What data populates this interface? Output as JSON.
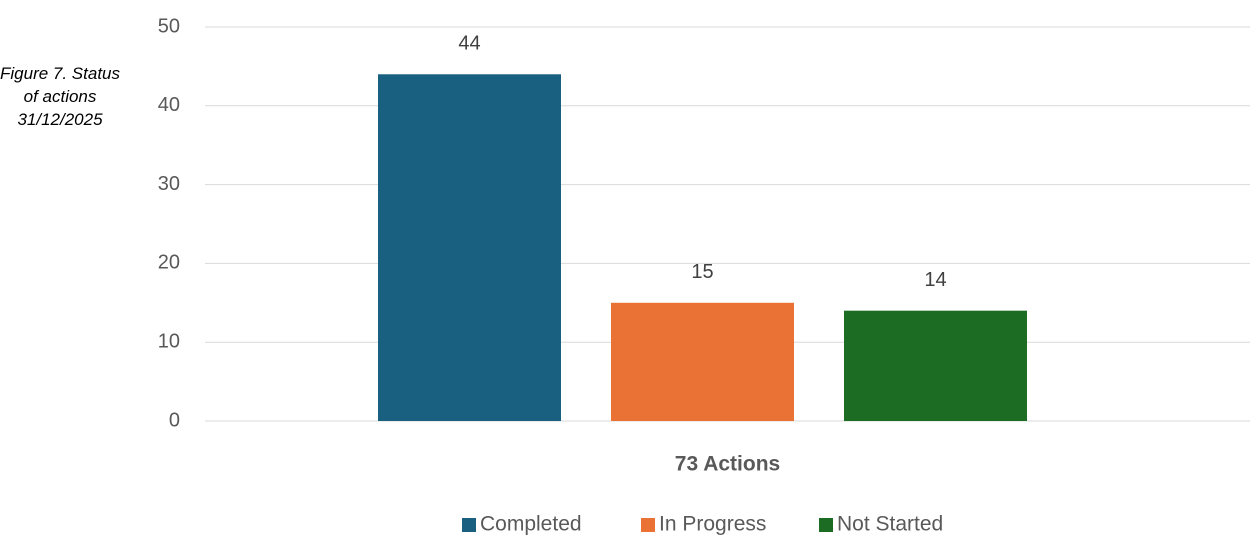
{
  "chart_data": {
    "type": "bar",
    "title": "Figure 7. Status of actions 31/12/2025",
    "categories": [
      "73 Actions"
    ],
    "series": [
      {
        "name": "Completed",
        "color": "#185f80",
        "values": [
          44
        ]
      },
      {
        "name": "In Progress",
        "color": "#e97234",
        "values": [
          15
        ]
      },
      {
        "name": "Not Started",
        "color": "#1c6c24",
        "values": [
          14
        ]
      }
    ],
    "ylim": [
      0,
      50
    ],
    "yticks": [
      0,
      10,
      20,
      30,
      40,
      50
    ],
    "grid": true,
    "legend": "bottom"
  }
}
